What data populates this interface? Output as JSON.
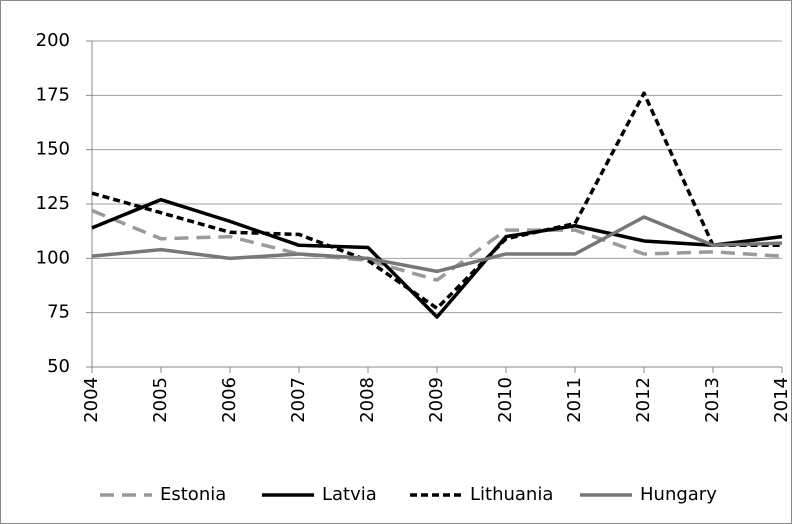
{
  "chart_data": {
    "type": "line",
    "x": [
      2004,
      2005,
      2006,
      2007,
      2008,
      2009,
      2010,
      2011,
      2012,
      2013,
      2014
    ],
    "series": [
      {
        "name": "Estonia",
        "color": "#9a9a9a",
        "dash": "14 8",
        "values": [
          122,
          109,
          110,
          102,
          99,
          90,
          113,
          113,
          102,
          103,
          101
        ]
      },
      {
        "name": "Latvia",
        "color": "#000000",
        "dash": "none",
        "values": [
          114,
          127,
          117,
          106,
          105,
          73,
          110,
          115,
          108,
          106,
          110
        ]
      },
      {
        "name": "Lithuania",
        "color": "#000000",
        "dash": "7 4",
        "values": [
          130,
          121,
          112,
          111,
          99,
          77,
          109,
          116,
          176,
          106,
          106
        ]
      },
      {
        "name": "Hungary",
        "color": "#777777",
        "dash": "none",
        "values": [
          101,
          104,
          100,
          102,
          100,
          94,
          102,
          102,
          119,
          106,
          107
        ]
      }
    ],
    "xlim": [
      2004,
      2014
    ],
    "ylim": [
      50,
      200
    ],
    "yticks": [
      50,
      75,
      100,
      125,
      150,
      175,
      200
    ],
    "grid": true,
    "legend": "bottom"
  }
}
